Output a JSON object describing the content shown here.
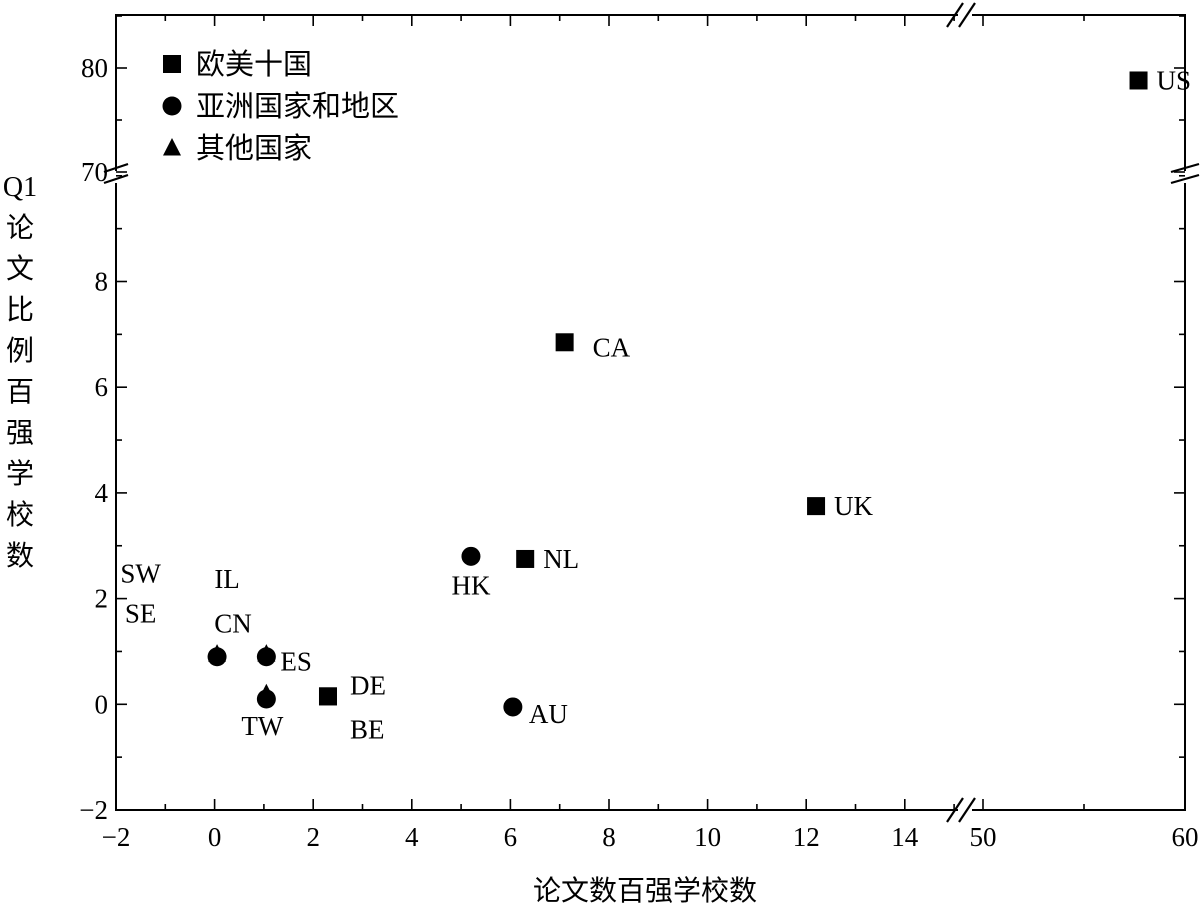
{
  "chart_data": {
    "type": "scatter",
    "xlabel": "论文数百强学校数",
    "ylabel": "Q1论文比例百强学校数",
    "x_axis": {
      "segments": [
        {
          "range": [
            -2,
            15
          ],
          "ticks": [
            -2,
            0,
            2,
            4,
            6,
            8,
            10,
            12,
            14
          ]
        },
        {
          "range": [
            50,
            60
          ],
          "ticks": [
            50,
            60
          ]
        }
      ]
    },
    "y_axis": {
      "segments": [
        {
          "range": [
            -2,
            10
          ],
          "ticks": [
            -2,
            0,
            2,
            4,
            6,
            8
          ]
        },
        {
          "range": [
            70,
            85
          ],
          "ticks": [
            70,
            80
          ]
        }
      ]
    },
    "legend": {
      "position": "top-left",
      "entries": [
        {
          "shape": "square",
          "label": "欧美十国"
        },
        {
          "shape": "circle",
          "label": "亚洲国家和地区"
        },
        {
          "shape": "triangle",
          "label": "其他国家"
        }
      ]
    },
    "points": [
      {
        "x": 57.7,
        "y": 78.8,
        "shape": "square",
        "label": "US"
      },
      {
        "x": 7.1,
        "y": 6.85,
        "shape": "square",
        "label": "CA"
      },
      {
        "x": 12.2,
        "y": 3.75,
        "shape": "square",
        "label": "UK"
      },
      {
        "x": 6.3,
        "y": 2.75,
        "shape": "square",
        "label": "NL"
      },
      {
        "x": 5.2,
        "y": 2.8,
        "shape": "circle",
        "label": "HK"
      },
      {
        "x": 2.3,
        "y": 0.15,
        "shape": "square",
        "label": "DE"
      },
      {
        "x": 2.3,
        "y": 0.15,
        "shape": "square",
        "label": "BE"
      },
      {
        "x": 6.05,
        "y": -0.05,
        "shape": "circle",
        "label": "AU"
      },
      {
        "x": 1.05,
        "y": 0.9,
        "shape": "circle",
        "label": "ES"
      },
      {
        "x": 1.05,
        "y": 0.95,
        "shape": "triangle",
        "label": ""
      },
      {
        "x": 1.05,
        "y": 0.1,
        "shape": "circle",
        "label": "TW"
      },
      {
        "x": 1.05,
        "y": 0.2,
        "shape": "triangle",
        "label": ""
      },
      {
        "x": 0.05,
        "y": 0.9,
        "shape": "circle",
        "label": "CN"
      },
      {
        "x": 0.05,
        "y": 0.95,
        "shape": "triangle",
        "label": "IL"
      },
      {
        "x": -1.5,
        "y": 2.3,
        "shape": "none",
        "label": "SW"
      },
      {
        "x": -1.5,
        "y": 1.55,
        "shape": "none",
        "label": "SE"
      }
    ]
  }
}
